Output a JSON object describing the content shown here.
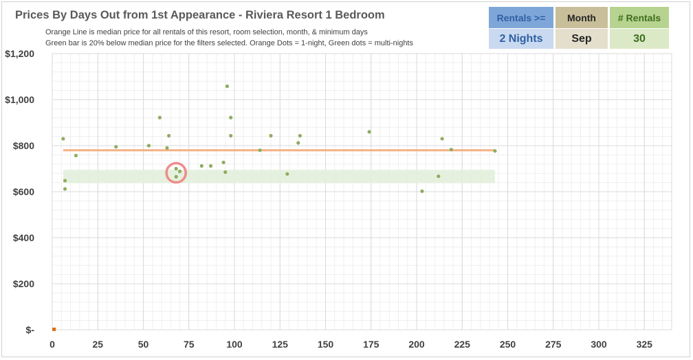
{
  "title": "Prices By Days Out from 1st Appearance - Riviera Resort 1 Bedroom",
  "subtitle_lines": [
    "Orange Line is median price for all rentals of this resort, room selection, month, & minimum days",
    "Green bar is 20% below median price for the filters selected. Orange Dots = 1-night, Green dots = multi-nights"
  ],
  "filters": {
    "rentals": {
      "label": "Rentals >=",
      "value": "2 Nights",
      "header_bg": "#7fa6d9",
      "header_color": "#2f5fa3",
      "value_bg": "#c9d9f0",
      "value_color": "#2f5fa3"
    },
    "month": {
      "label": "Month",
      "value": "Sep",
      "header_bg": "#c8bf9a",
      "header_color": "#262626",
      "value_bg": "#e4dfcc",
      "value_color": "#262626"
    },
    "count": {
      "label": "# Rentals",
      "value": "30",
      "header_bg": "#b6d38f",
      "header_color": "#3f6e1f",
      "value_bg": "#dbe9c6",
      "value_color": "#3f6e1f"
    }
  },
  "chart_data": {
    "type": "scatter",
    "title": "Prices By Days Out from 1st Appearance - Riviera Resort 1 Bedroom",
    "xlim": [
      0,
      340
    ],
    "ylim": [
      0,
      1200
    ],
    "x_ticks": [
      0,
      25,
      50,
      75,
      100,
      125,
      150,
      175,
      200,
      225,
      250,
      275,
      300,
      325
    ],
    "y_ticks": [
      0,
      200,
      400,
      600,
      800,
      1000,
      1200
    ],
    "y_tick_labels": [
      "$-",
      "$200",
      "$400",
      "$600",
      "$800",
      "$1,000",
      "$1,200"
    ],
    "grid": true,
    "median_line": {
      "y": 780,
      "x_start": 6,
      "x_end": 243,
      "color": "#f4b183"
    },
    "discount_band": {
      "y_low": 637,
      "y_high": 695,
      "x_start": 6,
      "x_end": 243,
      "color": "#e2efda"
    },
    "series": [
      {
        "color": "#8fac5f",
        "points": [
          [
            6,
            830
          ],
          [
            7,
            648
          ],
          [
            7,
            612
          ],
          [
            13,
            757
          ],
          [
            35,
            795
          ],
          [
            53,
            800
          ],
          [
            59,
            922
          ],
          [
            63,
            790
          ],
          [
            64,
            843
          ],
          [
            68,
            700
          ],
          [
            68,
            665
          ],
          [
            70,
            688
          ],
          [
            82,
            712
          ],
          [
            87,
            712
          ],
          [
            94,
            727
          ],
          [
            95,
            685
          ],
          [
            96,
            1058
          ],
          [
            98,
            922
          ],
          [
            98,
            843
          ],
          [
            114,
            780
          ],
          [
            120,
            843
          ],
          [
            129,
            677
          ],
          [
            135,
            812
          ],
          [
            136,
            843
          ],
          [
            174,
            860
          ],
          [
            203,
            602
          ],
          [
            212,
            667
          ],
          [
            214,
            830
          ],
          [
            219,
            783
          ],
          [
            243,
            777
          ]
        ]
      },
      {
        "color": "#e46c0a",
        "points": [
          [
            1,
            2
          ]
        ]
      }
    ],
    "highlight_circle": {
      "x": 68,
      "y": 682,
      "color": "#f08080"
    }
  }
}
